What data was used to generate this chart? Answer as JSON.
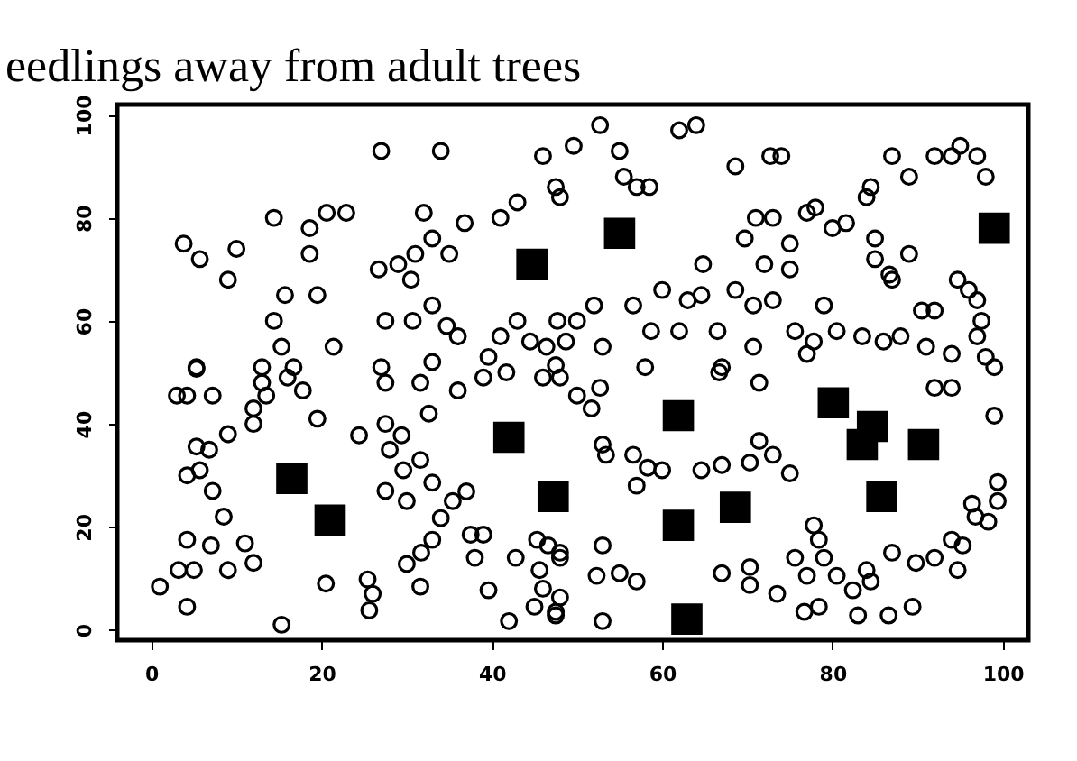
{
  "chart_data": {
    "type": "scatter",
    "title": "eedlings away from adult trees",
    "xlim": [
      -4,
      103
    ],
    "ylim": [
      -2,
      102
    ],
    "xticks": [
      0,
      20,
      40,
      60,
      80,
      100
    ],
    "yticks": [
      0,
      20,
      40,
      60,
      80,
      100
    ],
    "grid": false,
    "series": [
      {
        "color": "#000000",
        "marker": "circle",
        "x": [
          27,
          34,
          3.8,
          5.7,
          10,
          9,
          14.4,
          18.6,
          20.6,
          22.9,
          18.6,
          15.7,
          19.5,
          14.4,
          15.3,
          21.4,
          5.3,
          13,
          16.7,
          27,
          32,
          33,
          36.8,
          35,
          26.7,
          29,
          30.5,
          31,
          27.5,
          30.7,
          33,
          34.7,
          36,
          33,
          41,
          43,
          46,
          47.5,
          48,
          43,
          47.7,
          41,
          39.6,
          44.5,
          46.4,
          49.6,
          52.7,
          55,
          55.5,
          57,
          58.5,
          62,
          64,
          68.6,
          72.7,
          74,
          87,
          89,
          92,
          94,
          95,
          97,
          98,
          84.5,
          84,
          77,
          78,
          80,
          81.6,
          71,
          73,
          69.7,
          75,
          85,
          85,
          89,
          86.7,
          87,
          64.8,
          72,
          75,
          94.7,
          96,
          97,
          97.5,
          90.5,
          92,
          97,
          98,
          99,
          60,
          63,
          64.6,
          68.6,
          70.7,
          73,
          56.6,
          52,
          50,
          48.7,
          53,
          58.7,
          62,
          66.5,
          70.7,
          75.6,
          77.8,
          80.5,
          79,
          83.5,
          86,
          88,
          91,
          94,
          58,
          67,
          77,
          3,
          4.2,
          7.2,
          5.3,
          12,
          13.5,
          12,
          13,
          16,
          17.8,
          19.5,
          5.3,
          6.8,
          9,
          4.2,
          5.7,
          7.2,
          8.5,
          4.2,
          7,
          11,
          12,
          9,
          3.2,
          5,
          1,
          4.2,
          15.3,
          20.5,
          25.4,
          26,
          25.6,
          24.4,
          27.5,
          29.4,
          28,
          29.6,
          31.6,
          27.5,
          30,
          33,
          35.4,
          37,
          30,
          31.7,
          34,
          33,
          37.5,
          39,
          38,
          31.6,
          39.6,
          42,
          42.8,
          45.3,
          45.6,
          46,
          48,
          45,
          47.5,
          48,
          27.5,
          31.6,
          32.6,
          36,
          39,
          41.7,
          46,
          48,
          47.5,
          50,
          51.7,
          52.7,
          53,
          53.4,
          56.6,
          57,
          58.3,
          60,
          64.6,
          67,
          70.3,
          71.4,
          73,
          75,
          66.7,
          71.4,
          92,
          94,
          99,
          46.6,
          48,
          47.5,
          53,
          52.3,
          55,
          57,
          53,
          67,
          70.3,
          70.3,
          73.5,
          75.6,
          77.8,
          78.4,
          77,
          79,
          76.7,
          78.4,
          80.5,
          82.4,
          83,
          84.5,
          84,
          86.6,
          89.4,
          87,
          89.8,
          92,
          94,
          95.3,
          96.4,
          96.8,
          98.3,
          99.4,
          99.4,
          94.7
        ],
        "values": [
          93,
          93,
          75,
          72,
          74,
          68,
          80,
          78,
          81,
          81,
          73,
          65,
          65,
          60,
          55,
          55,
          51,
          51,
          51,
          51,
          81,
          76,
          79,
          73,
          70,
          71,
          68,
          73,
          60,
          60,
          63,
          59,
          57,
          52,
          80,
          83,
          92,
          86,
          84,
          60,
          60,
          57,
          53,
          56,
          55,
          94,
          98,
          93,
          88,
          86,
          86,
          97,
          98,
          90,
          92,
          92,
          92,
          88,
          92,
          92,
          94,
          92,
          88,
          86,
          84,
          81,
          82,
          78,
          79,
          80,
          80,
          76,
          75,
          76,
          72,
          73,
          69,
          68,
          71,
          71,
          70,
          68,
          66,
          64,
          60,
          62,
          62,
          57,
          53,
          51,
          66,
          64,
          65,
          66,
          63,
          64,
          63,
          63,
          60,
          56,
          55,
          58,
          58,
          58,
          55,
          58,
          56,
          58,
          63,
          57,
          56,
          57,
          55,
          53.6,
          51,
          51,
          53.6,
          45.5,
          45.5,
          45.5,
          50.7,
          43,
          45.5,
          40,
          48,
          49,
          46.5,
          41,
          35.6,
          35,
          38,
          30,
          31,
          27,
          22,
          17.5,
          16.4,
          16.8,
          13,
          11.6,
          11.6,
          11.6,
          8.4,
          4.5,
          1,
          9,
          9.8,
          7,
          3.8,
          37.8,
          40,
          37.8,
          35,
          31,
          33,
          27,
          25,
          28.6,
          25,
          26.9,
          12.8,
          15,
          21.7,
          17.5,
          18.5,
          18.5,
          14,
          8.4,
          7.7,
          1.7,
          14,
          17.5,
          11.6,
          8,
          15,
          4.5,
          2.8,
          6.3,
          48,
          48,
          42,
          46.5,
          49,
          50,
          49,
          49,
          51.4,
          45.5,
          43,
          47,
          36,
          34,
          34,
          28,
          31.5,
          31,
          31,
          32,
          32.5,
          36.7,
          34,
          30.4,
          50,
          48,
          47,
          47,
          41.6,
          16.4,
          14,
          3.5,
          16.4,
          10.5,
          11,
          9.4,
          1.7,
          11,
          12.2,
          8.7,
          7,
          14,
          20.3,
          17.5,
          10.5,
          14,
          3.5,
          4.5,
          10.5,
          7.7,
          2.8,
          9.4,
          11.6,
          2.8,
          4.5,
          15,
          13,
          14,
          17.5,
          16.4,
          24.5,
          22,
          21,
          25,
          28.7,
          11.6
        ]
      },
      {
        "color": "#000000",
        "marker": "square",
        "x": [
          16.5,
          21,
          42,
          44.7,
          47.2,
          55,
          61.9,
          61.9,
          68.6,
          62.9,
          80.1,
          84.7,
          83.5,
          90.7,
          85.8,
          99
        ],
        "values": [
          29.4,
          21.3,
          37.4,
          71,
          25.9,
          77,
          41.6,
          20.3,
          23.8,
          2.1,
          44.1,
          39.5,
          36,
          36,
          25.9,
          78
        ]
      }
    ]
  }
}
